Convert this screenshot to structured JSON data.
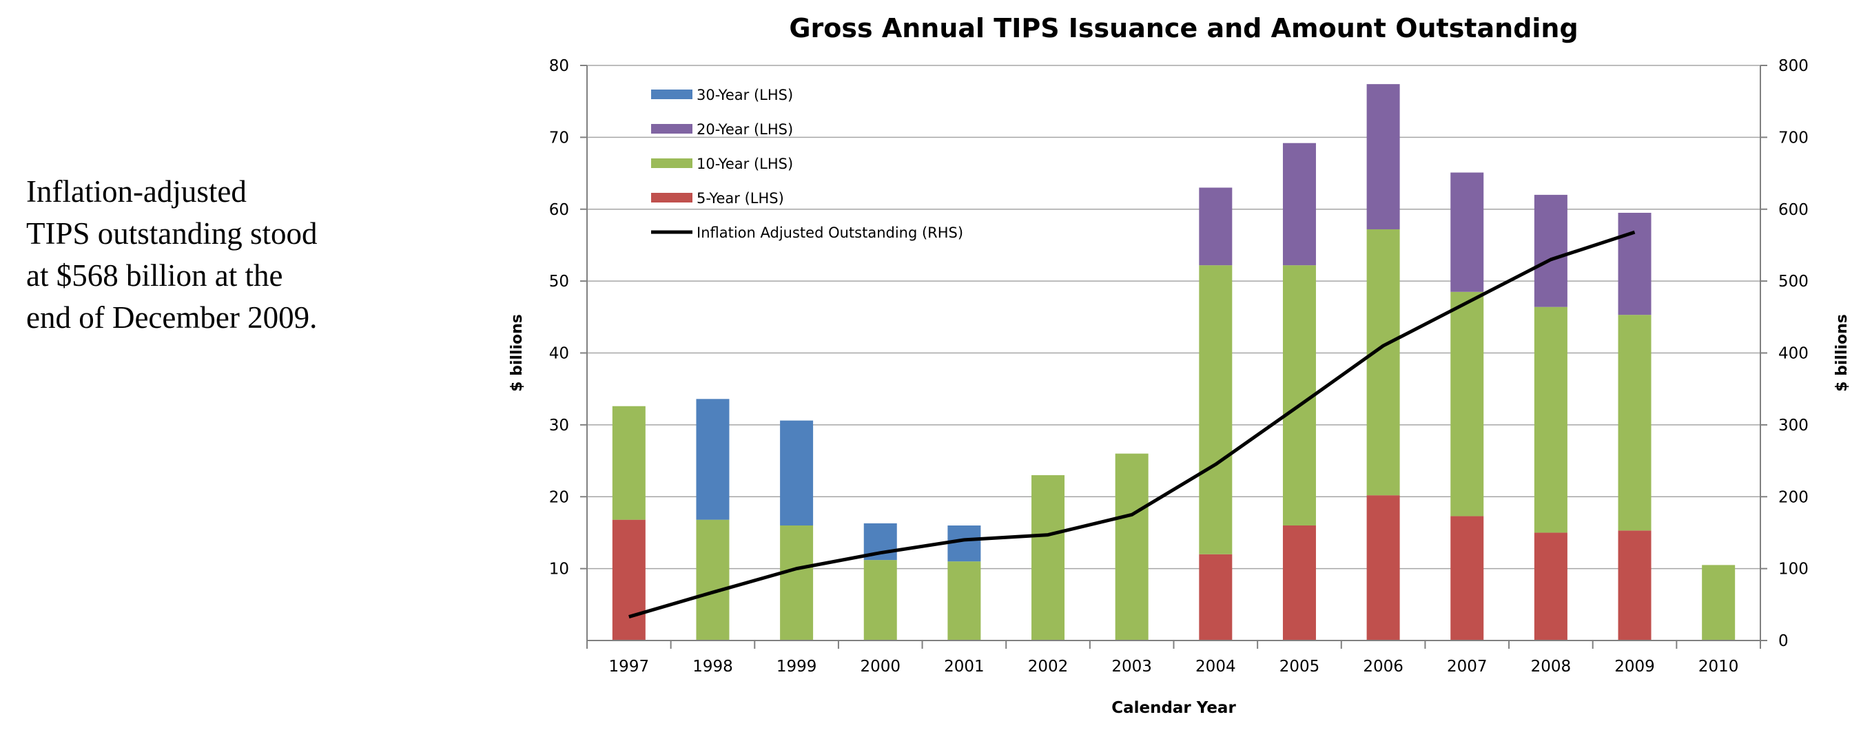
{
  "caption": {
    "lines": [
      "Inflation-adjusted",
      "TIPS outstanding stood",
      "at $568 billion at the",
      "end of December 2009."
    ]
  },
  "colors": {
    "5-Year (LHS)": "#C0504D",
    "10-Year (LHS)": "#9BBB59",
    "20-Year (LHS)": "#8064A2",
    "30-Year (LHS)": "#4F81BD",
    "Inflation Adjusted Outstanding (RHS)": "#000000",
    "grid": "#A6A6A6"
  },
  "chart_data": {
    "type": "bar",
    "stacked": true,
    "title": "Gross Annual TIPS Issuance and Amount Outstanding",
    "xlabel": "Calendar Year",
    "ylabel": "$ billions",
    "y2label": "$ billions",
    "ylim": [
      0,
      80
    ],
    "y2lim": [
      0,
      800
    ],
    "yticks": [
      10,
      20,
      30,
      40,
      50,
      60,
      70,
      80
    ],
    "y2ticks": [
      0,
      100,
      200,
      300,
      400,
      500,
      600,
      700,
      800
    ],
    "grid": true,
    "legend_position": "top-left",
    "legend_order": [
      "30-Year (LHS)",
      "20-Year (LHS)",
      "10-Year (LHS)",
      "5-Year (LHS)",
      "Inflation Adjusted Outstanding (RHS)"
    ],
    "categories": [
      "1997",
      "1998",
      "1999",
      "2000",
      "2001",
      "2002",
      "2003",
      "2004",
      "2005",
      "2006",
      "2007",
      "2008",
      "2009",
      "2010"
    ],
    "series": [
      {
        "name": "5-Year (LHS)",
        "axis": "left",
        "type": "bar",
        "values": [
          16.8,
          0,
          0,
          0,
          0,
          0,
          0,
          12,
          16,
          20.2,
          17.3,
          15,
          15.3,
          0
        ]
      },
      {
        "name": "10-Year (LHS)",
        "axis": "left",
        "type": "bar",
        "values": [
          15.8,
          16.8,
          16,
          11.2,
          11,
          23,
          26,
          40.2,
          36.2,
          37,
          31.2,
          31.4,
          30,
          10.5
        ]
      },
      {
        "name": "20-Year (LHS)",
        "axis": "left",
        "type": "bar",
        "values": [
          0,
          0,
          0,
          0,
          0,
          0,
          0,
          10.8,
          17,
          20.2,
          16.6,
          15.6,
          14.2,
          0
        ]
      },
      {
        "name": "30-Year (LHS)",
        "axis": "left",
        "type": "bar",
        "values": [
          0,
          16.8,
          14.6,
          5.1,
          5,
          0,
          0,
          0,
          0,
          0,
          0,
          0,
          0,
          0
        ]
      },
      {
        "name": "Inflation Adjusted Outstanding (RHS)",
        "axis": "right",
        "type": "line",
        "values": [
          33,
          67,
          100,
          122,
          140,
          147,
          175,
          245,
          327,
          410,
          470,
          530,
          568,
          null
        ]
      }
    ]
  }
}
